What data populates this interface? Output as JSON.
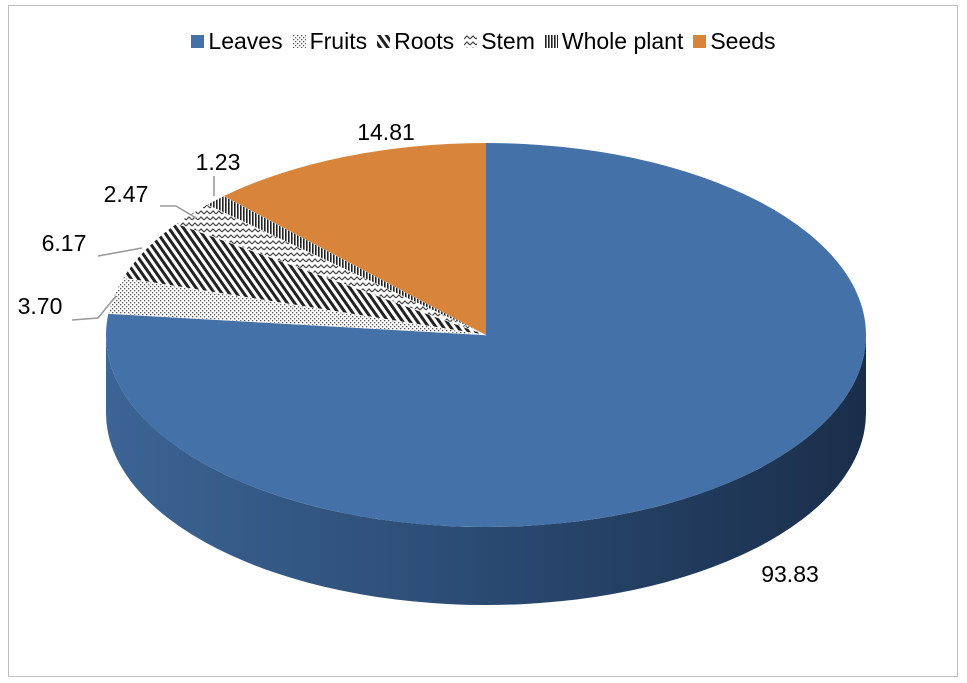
{
  "chart_data": {
    "type": "pie",
    "style": "3d",
    "legend_position": "top",
    "categories": [
      "Leaves",
      "Fruits",
      "Roots",
      "Stem",
      "Whole plant",
      "Seeds"
    ],
    "values": [
      93.83,
      3.7,
      6.17,
      2.47,
      1.23,
      14.81
    ],
    "value_labels": [
      "93.83",
      "3.70",
      "6.17",
      "2.47",
      "1.23",
      "14.81"
    ],
    "colors": [
      "#4472a8",
      "#ffffff",
      "#ffffff",
      "#ffffff",
      "#ffffff",
      "#d9843b"
    ],
    "patterns": [
      "solid",
      "dots",
      "diagonal-stripes",
      "zigzag",
      "vertical-lines",
      "solid"
    ]
  }
}
